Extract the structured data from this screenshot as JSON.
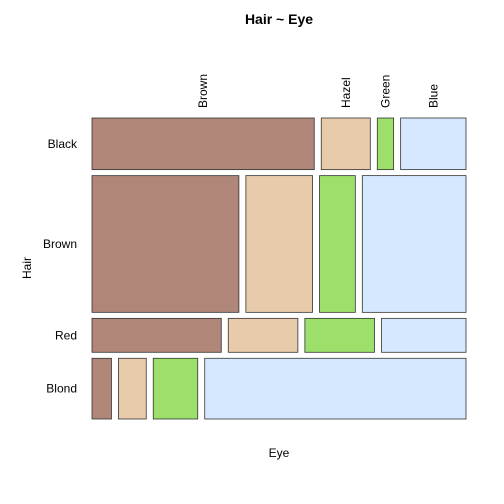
{
  "chart_data": {
    "type": "mosaic",
    "title": "Hair ~ Eye",
    "xlabel": "Eye",
    "ylabel": "Hair",
    "hair": [
      "Black",
      "Brown",
      "Red",
      "Blond"
    ],
    "eye": [
      "Brown",
      "Hazel",
      "Green",
      "Blue"
    ],
    "colors": [
      "#af8677",
      "#e8cbab",
      "#9ddf6b",
      "#d6e8ff"
    ],
    "counts": [
      [
        68,
        15,
        5,
        20
      ],
      [
        119,
        54,
        29,
        84
      ],
      [
        26,
        14,
        14,
        17
      ],
      [
        7,
        10,
        16,
        94
      ]
    ]
  }
}
